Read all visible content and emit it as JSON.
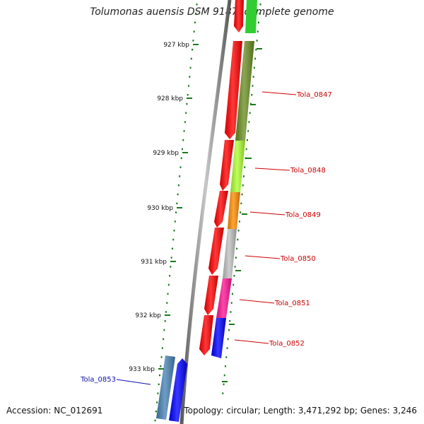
{
  "title": "Tolumonas auensis DSM 9187, complete genome",
  "accession": "Accession: NC_012691",
  "topology": "Topology: circular; Length: 3,471,292 bp; Genes: 3,246",
  "colors": {
    "forward_strand": "#ff0000",
    "axis": "#777777",
    "tick": "#1a7a1a",
    "label_red": "#cc0000",
    "label_blue": "#1010aa"
  },
  "scale_ticks": [
    {
      "label": "927 kbp"
    },
    {
      "label": "928 kbp"
    },
    {
      "label": "929 kbp"
    },
    {
      "label": "930 kbp"
    },
    {
      "label": "931 kbp"
    },
    {
      "label": "932 kbp"
    },
    {
      "label": "933 kbp"
    }
  ],
  "genes": [
    {
      "name": "Tola_0847",
      "color": "#6b8e23",
      "label_color": "#cc0000"
    },
    {
      "name": "Tola_0848",
      "color": "#adff2f",
      "label_color": "#cc0000"
    },
    {
      "name": "Tola_0849",
      "color": "#ff8c00",
      "label_color": "#cc0000"
    },
    {
      "name": "Tola_0850",
      "color": "#c0c0c0",
      "label_color": "#cc0000"
    },
    {
      "name": "Tola_0851",
      "color": "#ff1493",
      "label_color": "#cc0000"
    },
    {
      "name": "Tola_0852",
      "color": "#0000ff",
      "label_color": "#cc0000"
    },
    {
      "name": "Tola_0853",
      "color": "#4682b4",
      "label_color": "#1010aa"
    }
  ]
}
